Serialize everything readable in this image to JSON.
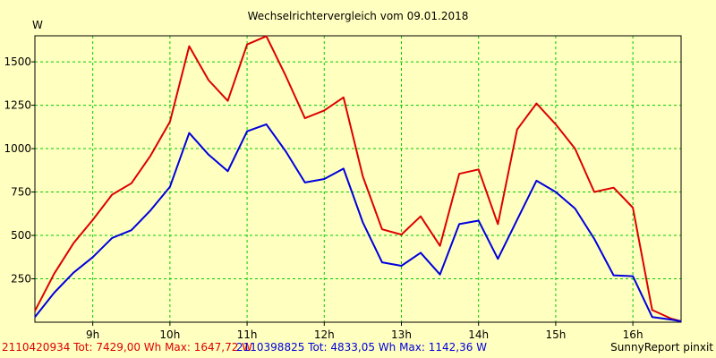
{
  "chart_data": {
    "type": "line",
    "title": "Wechselrichtervergleich vom 09.01.2018",
    "ylabel": "W",
    "xlabel": "",
    "ylim": [
      0,
      1650
    ],
    "xlim": [
      8.25,
      16.625
    ],
    "grid": true,
    "legend_placement": "bottom",
    "y_ticks": [
      {
        "value": 250,
        "label": "250"
      },
      {
        "value": 500,
        "label": "500"
      },
      {
        "value": 750,
        "label": "750"
      },
      {
        "value": 1000,
        "label": "1000"
      },
      {
        "value": 1250,
        "label": "1250"
      },
      {
        "value": 1500,
        "label": "1500"
      }
    ],
    "x_ticks": [
      {
        "value": 9,
        "label": "9h"
      },
      {
        "value": 10,
        "label": "10h"
      },
      {
        "value": 11,
        "label": "11h"
      },
      {
        "value": 12,
        "label": "12h"
      },
      {
        "value": 13,
        "label": "13h"
      },
      {
        "value": 14,
        "label": "14h"
      },
      {
        "value": 15,
        "label": "15h"
      },
      {
        "value": 16,
        "label": "16h"
      }
    ],
    "x": [
      8.25,
      8.5,
      8.75,
      9.0,
      9.25,
      9.5,
      9.75,
      10.0,
      10.25,
      10.5,
      10.75,
      11.0,
      11.25,
      11.5,
      11.75,
      12.0,
      12.25,
      12.5,
      12.75,
      13.0,
      13.25,
      13.5,
      13.75,
      14.0,
      14.25,
      14.5,
      14.75,
      15.0,
      15.25,
      15.5,
      15.75,
      16.0,
      16.25,
      16.5,
      16.625
    ],
    "series": [
      {
        "color": "#dd0000",
        "values": [
          65,
          280,
          455,
          590,
          735,
          800,
          960,
          1155,
          1590,
          1395,
          1275,
          1600,
          1648,
          1420,
          1175,
          1220,
          1295,
          840,
          535,
          505,
          610,
          440,
          855,
          880,
          565,
          1110,
          1260,
          1140,
          1000,
          750,
          775,
          660,
          70,
          20,
          5
        ]
      },
      {
        "color": "#0000dd",
        "values": [
          30,
          170,
          285,
          375,
          485,
          530,
          645,
          780,
          1090,
          965,
          870,
          1100,
          1140,
          985,
          805,
          825,
          885,
          575,
          345,
          325,
          400,
          275,
          565,
          585,
          365,
          590,
          815,
          750,
          655,
          480,
          270,
          265,
          30,
          15,
          5
        ]
      }
    ]
  },
  "legend": {
    "series1_text": "2110420934 Tot: 7429,00 Wh Max: 1647,72 W",
    "series2_text": "2110398825 Tot: 4833,05 Wh Max: 1142,36 W"
  },
  "footer": {
    "credit": "SunnyReport pinxit"
  },
  "colors": {
    "background": "#ffffc0",
    "grid": "#00cc00",
    "axis": "#000000"
  }
}
